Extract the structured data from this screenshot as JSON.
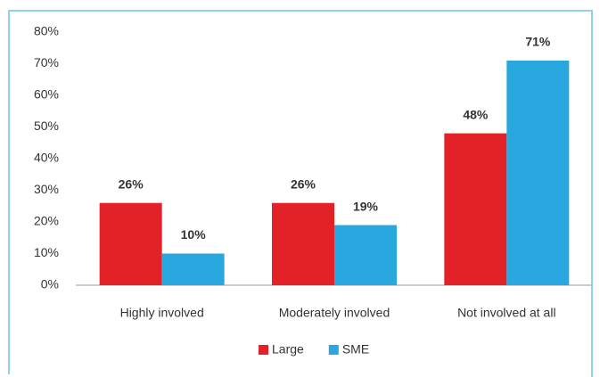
{
  "chart_data": {
    "type": "bar",
    "categories": [
      "Highly involved",
      "Moderately involved",
      "Not involved at all"
    ],
    "series": [
      {
        "name": "Large",
        "color": "#e32227",
        "values": [
          26,
          26,
          48
        ],
        "value_labels": [
          "26%",
          "26%",
          "48%"
        ]
      },
      {
        "name": "SME",
        "color": "#29a8e0",
        "values": [
          10,
          19,
          71
        ],
        "value_labels": [
          "10%",
          "19%",
          "71%"
        ]
      }
    ],
    "ylim": [
      0,
      80
    ],
    "yticks": [
      {
        "value": 0,
        "label": "0%"
      },
      {
        "value": 10,
        "label": "10%"
      },
      {
        "value": 20,
        "label": "20%"
      },
      {
        "value": 30,
        "label": "30%"
      },
      {
        "value": 40,
        "label": "40%"
      },
      {
        "value": 50,
        "label": "50%"
      },
      {
        "value": 60,
        "label": "60%"
      },
      {
        "value": 70,
        "label": "70%"
      },
      {
        "value": 80,
        "label": "80%"
      }
    ],
    "legend": "bottom"
  }
}
